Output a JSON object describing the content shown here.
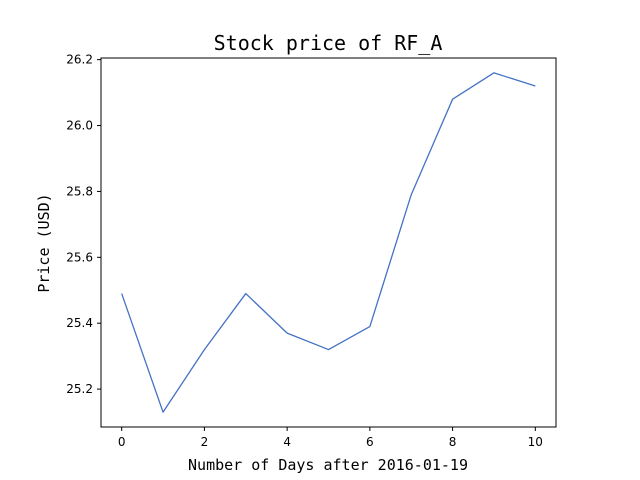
{
  "chart_data": {
    "type": "line",
    "title": "Stock price of RF_A",
    "xlabel": "Number of Days after 2016-01-19",
    "ylabel": "Price (USD)",
    "xlim": [
      -0.5,
      10.5
    ],
    "ylim": [
      25.085,
      26.205
    ],
    "xticks": [
      0,
      2,
      4,
      6,
      8,
      10
    ],
    "yticks": [
      25.2,
      25.4,
      25.6,
      25.8,
      26.0,
      26.2
    ],
    "ytick_labels": [
      "25.2",
      "25.4",
      "25.6",
      "25.8",
      "26.0",
      "26.2"
    ],
    "grid": false,
    "series": [
      {
        "color": "#4472c4",
        "x": [
          0,
          1,
          2,
          3,
          4,
          5,
          6,
          7,
          8,
          9,
          10
        ],
        "y": [
          25.49,
          25.13,
          25.32,
          25.49,
          25.37,
          25.32,
          25.39,
          25.79,
          26.08,
          26.16,
          26.12
        ]
      }
    ]
  }
}
